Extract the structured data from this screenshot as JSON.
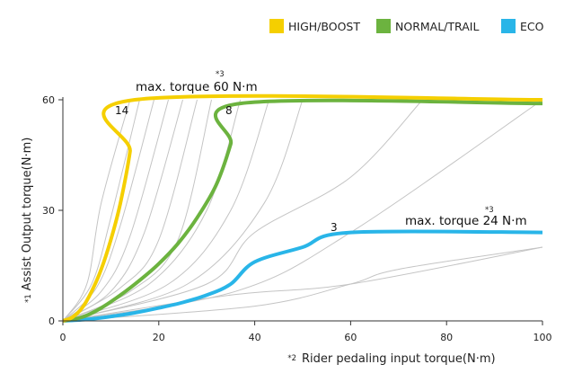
{
  "chart_data": {
    "type": "line",
    "ylabel": "Assist Output torque(N·m)",
    "ylabel_note": "*1",
    "xlabel": "Rider pedaling input torque(N·m)",
    "xlabel_note": "*2",
    "xlim": [
      0,
      100
    ],
    "ylim": [
      0,
      60
    ],
    "x_ticks": [
      "0",
      "20",
      "40",
      "60",
      "80",
      "100"
    ],
    "y_ticks": [
      "0",
      "30",
      "60"
    ],
    "grid": false,
    "legend_position": "top-right",
    "series": [
      {
        "name": "HIGH/BOOST",
        "color": "#f5cf00",
        "end_label": "14",
        "points": [
          [
            0,
            0
          ],
          [
            2,
            1
          ],
          [
            4,
            3.5
          ],
          [
            6,
            8
          ],
          [
            8,
            14
          ],
          [
            10,
            22
          ],
          [
            12,
            32
          ],
          [
            14,
            46
          ],
          [
            15,
            60
          ],
          [
            100,
            60
          ]
        ]
      },
      {
        "name": "NORMAL/TRAIL",
        "color": "#6cb33f",
        "end_label": "8",
        "points": [
          [
            0,
            0
          ],
          [
            4,
            1
          ],
          [
            8,
            3.5
          ],
          [
            12,
            7
          ],
          [
            16,
            11
          ],
          [
            20,
            15.5
          ],
          [
            24,
            21
          ],
          [
            28,
            28
          ],
          [
            32,
            37
          ],
          [
            35,
            48
          ],
          [
            37,
            59
          ],
          [
            100,
            59
          ]
        ]
      },
      {
        "name": "ECO",
        "color": "#29b5e8",
        "end_label": "3",
        "points": [
          [
            0,
            0
          ],
          [
            5,
            0.4
          ],
          [
            10,
            1.2
          ],
          [
            15,
            2.2
          ],
          [
            20,
            3.5
          ],
          [
            25,
            5
          ],
          [
            30,
            7
          ],
          [
            35,
            10
          ],
          [
            40,
            16
          ],
          [
            50,
            20
          ],
          [
            60,
            24
          ],
          [
            100,
            24
          ]
        ]
      }
    ],
    "intermediate_curves": [
      {
        "points": [
          [
            0,
            0
          ],
          [
            5,
            10
          ],
          [
            8,
            32
          ],
          [
            14,
            60
          ]
        ]
      },
      {
        "points": [
          [
            0,
            0
          ],
          [
            6,
            10
          ],
          [
            10,
            28
          ],
          [
            16,
            60
          ]
        ]
      },
      {
        "points": [
          [
            0,
            0
          ],
          [
            7,
            9
          ],
          [
            12,
            26
          ],
          [
            19,
            60
          ]
        ]
      },
      {
        "points": [
          [
            0,
            0
          ],
          [
            8,
            8
          ],
          [
            14,
            23
          ],
          [
            22,
            60
          ]
        ]
      },
      {
        "points": [
          [
            0,
            0
          ],
          [
            10,
            8
          ],
          [
            17,
            24
          ],
          [
            25,
            60
          ]
        ]
      },
      {
        "points": [
          [
            0,
            0
          ],
          [
            12,
            9
          ],
          [
            20,
            22
          ],
          [
            28,
            60
          ]
        ]
      },
      {
        "points": [
          [
            0,
            0
          ],
          [
            14,
            8
          ],
          [
            24,
            22
          ],
          [
            31,
            60
          ]
        ]
      },
      {
        "points": [
          [
            0,
            0
          ],
          [
            18,
            10
          ],
          [
            30,
            30
          ],
          [
            37,
            60
          ]
        ]
      },
      {
        "points": [
          [
            0,
            0
          ],
          [
            22,
            10
          ],
          [
            35,
            30
          ],
          [
            43,
            60
          ]
        ]
      },
      {
        "points": [
          [
            0,
            0
          ],
          [
            26,
            10
          ],
          [
            42,
            32
          ],
          [
            50,
            60
          ]
        ]
      },
      {
        "points": [
          [
            0,
            0
          ],
          [
            30,
            10
          ],
          [
            40,
            24
          ],
          [
            60,
            39
          ],
          [
            75,
            60
          ]
        ]
      },
      {
        "points": [
          [
            0,
            0
          ],
          [
            36,
            8
          ],
          [
            60,
            24
          ],
          [
            100,
            60
          ]
        ]
      },
      {
        "points": [
          [
            0,
            0
          ],
          [
            35,
            7
          ],
          [
            60,
            10
          ],
          [
            100,
            20
          ]
        ]
      },
      {
        "points": [
          [
            0,
            0
          ],
          [
            40,
            4
          ],
          [
            60,
            10
          ],
          [
            70,
            14
          ],
          [
            100,
            20
          ]
        ]
      }
    ],
    "annotations": [
      {
        "text": "max. torque 60 N·m",
        "note": "*3"
      },
      {
        "text": "max. torque 24 N·m",
        "note": "*3"
      }
    ]
  }
}
